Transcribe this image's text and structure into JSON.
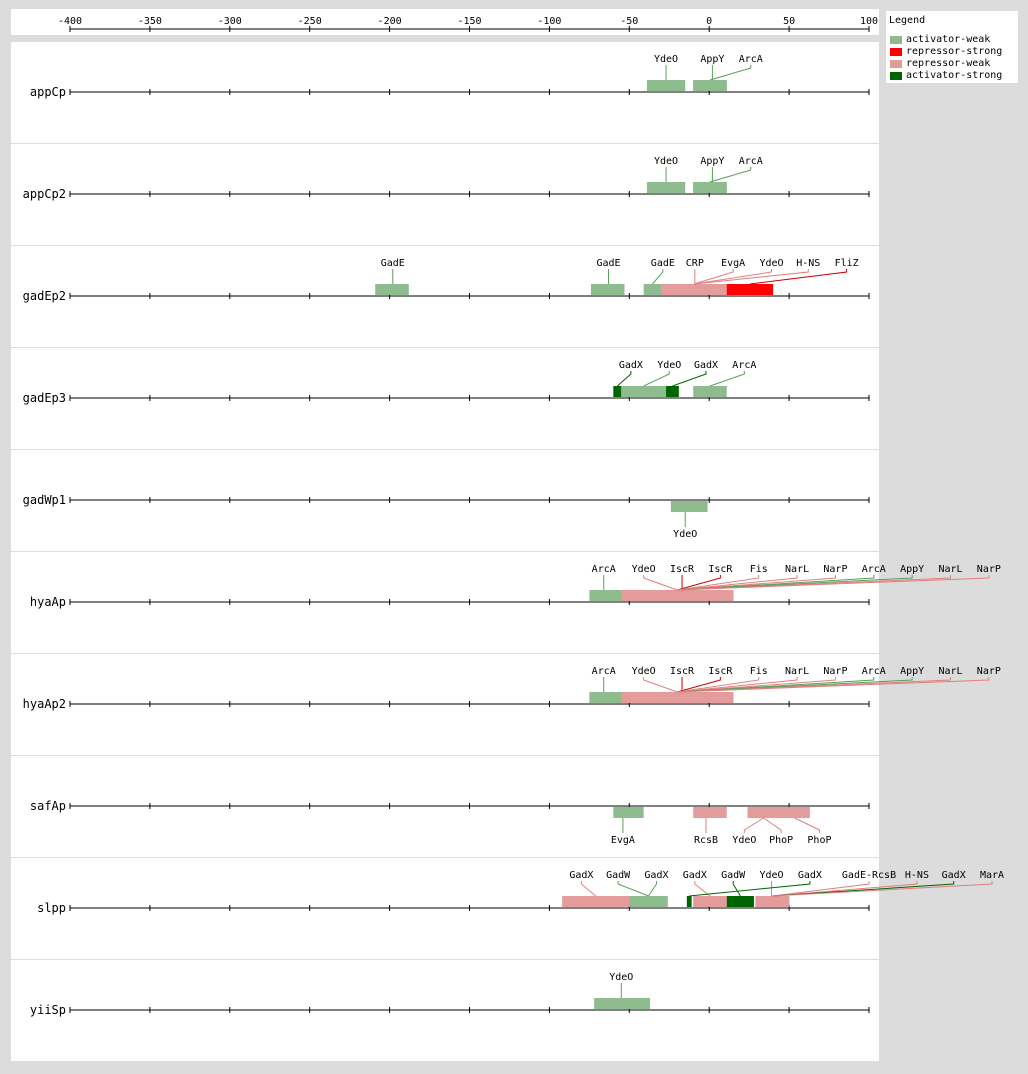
{
  "legend": {
    "title": "Legend",
    "items": [
      {
        "label": "activator-weak",
        "color": "#8fbc8f"
      },
      {
        "label": "repressor-strong",
        "color": "#ff0000"
      },
      {
        "label": "repressor-weak",
        "color": "#e39b9b"
      },
      {
        "label": "activator-strong",
        "color": "#006400"
      }
    ]
  },
  "axis": {
    "ticks": [
      -400,
      -350,
      -300,
      -250,
      -200,
      -150,
      -100,
      -50,
      0,
      50,
      100
    ],
    "tick_labels": [
      "-400",
      "-350",
      "-300",
      "-250",
      "-200",
      "-150",
      "-100",
      "-50",
      "0",
      "50",
      "100"
    ],
    "range": [
      -400,
      100
    ]
  },
  "promoters": [
    {
      "name": "appCp",
      "sites": [
        {
          "tf": "YdeO",
          "start": -39,
          "end": -15,
          "type": "activator-weak",
          "label_pos": "above",
          "label_at": -27
        },
        {
          "tf": "AppY",
          "start": -10,
          "end": 11,
          "type": "activator-weak",
          "label_pos": "above",
          "label_at": 2
        },
        {
          "tf": "ArcA",
          "start": -10,
          "end": 11,
          "type": "activator-weak",
          "label_pos": "above",
          "label_at": 26
        }
      ]
    },
    {
      "name": "appCp2",
      "sites": [
        {
          "tf": "YdeO",
          "start": -39,
          "end": -15,
          "type": "activator-weak",
          "label_pos": "above",
          "label_at": -27
        },
        {
          "tf": "AppY",
          "start": -10,
          "end": 11,
          "type": "activator-weak",
          "label_pos": "above",
          "label_at": 2
        },
        {
          "tf": "ArcA",
          "start": -10,
          "end": 11,
          "type": "activator-weak",
          "label_pos": "above",
          "label_at": 26
        }
      ]
    },
    {
      "name": "gadEp2",
      "sites": [
        {
          "tf": "GadE",
          "start": -209,
          "end": -188,
          "type": "activator-weak",
          "label_pos": "above",
          "label_at": -198
        },
        {
          "tf": "GadE",
          "start": -74,
          "end": -53,
          "type": "activator-weak",
          "label_pos": "above",
          "label_at": -63
        },
        {
          "tf": "GadE",
          "start": -41,
          "end": -30,
          "type": "activator-weak",
          "label_pos": "above",
          "label_at": -29
        },
        {
          "tf": "CRP",
          "start": -30,
          "end": 11,
          "type": "repressor-weak",
          "label_pos": "above",
          "label_at": -9
        },
        {
          "tf": "EvgA",
          "start": -30,
          "end": 11,
          "type": "repressor-weak",
          "label_pos": "above",
          "label_at": 15
        },
        {
          "tf": "YdeO",
          "start": -30,
          "end": 11,
          "type": "repressor-weak",
          "label_pos": "above",
          "label_at": 39
        },
        {
          "tf": "H-NS",
          "start": -30,
          "end": 11,
          "type": "repressor-weak",
          "label_pos": "above",
          "label_at": 62
        },
        {
          "tf": "FliZ",
          "start": 11,
          "end": 40,
          "type": "repressor-strong",
          "label_pos": "above",
          "label_at": 86
        }
      ]
    },
    {
      "name": "gadEp3",
      "sites": [
        {
          "tf": "GadX",
          "start": -60,
          "end": -55,
          "type": "activator-strong",
          "label_pos": "above",
          "label_at": -49
        },
        {
          "tf": "YdeO",
          "start": -55,
          "end": -27,
          "type": "activator-weak",
          "label_pos": "above",
          "label_at": -25
        },
        {
          "tf": "GadX",
          "start": -27,
          "end": -19,
          "type": "activator-strong",
          "label_pos": "above",
          "label_at": -2
        },
        {
          "tf": "ArcA",
          "start": -10,
          "end": 11,
          "type": "activator-weak",
          "label_pos": "above",
          "label_at": 22
        }
      ]
    },
    {
      "name": "gadWp1",
      "sites": [
        {
          "tf": "YdeO",
          "start": -24,
          "end": -1,
          "type": "activator-weak",
          "label_pos": "below",
          "label_at": -15
        }
      ]
    },
    {
      "name": "hyaAp",
      "sites": [
        {
          "tf": "ArcA",
          "start": -75,
          "end": -55,
          "type": "activator-weak",
          "label_pos": "above",
          "label_at": -66
        },
        {
          "tf": "YdeO",
          "start": -55,
          "end": 15,
          "type": "repressor-weak",
          "label_pos": "above",
          "label_at": -41
        },
        {
          "tf": "IscR",
          "start": -55,
          "end": 15,
          "type": "repressor-strong",
          "label_pos": "above",
          "label_at": -17
        },
        {
          "tf": "IscR",
          "start": -55,
          "end": 15,
          "type": "repressor-strong",
          "label_pos": "above",
          "label_at": 7
        },
        {
          "tf": "Fis",
          "start": -55,
          "end": 15,
          "type": "repressor-weak",
          "label_pos": "above",
          "label_at": 31
        },
        {
          "tf": "NarL",
          "start": -55,
          "end": 15,
          "type": "repressor-weak",
          "label_pos": "above",
          "label_at": 55
        },
        {
          "tf": "NarP",
          "start": -55,
          "end": 15,
          "type": "repressor-weak",
          "label_pos": "above",
          "label_at": 79
        },
        {
          "tf": "ArcA",
          "start": -55,
          "end": 15,
          "type": "activator-weak",
          "label_pos": "above",
          "label_at": 103
        },
        {
          "tf": "AppY",
          "start": -55,
          "end": 15,
          "type": "activator-weak",
          "label_pos": "above",
          "label_at": 127
        },
        {
          "tf": "NarL",
          "start": -55,
          "end": 15,
          "type": "repressor-weak",
          "label_pos": "above",
          "label_at": 151
        },
        {
          "tf": "NarP",
          "start": -55,
          "end": 15,
          "type": "repressor-weak",
          "label_pos": "above",
          "label_at": 175
        }
      ]
    },
    {
      "name": "hyaAp2",
      "sites": [
        {
          "tf": "ArcA",
          "start": -75,
          "end": -55,
          "type": "activator-weak",
          "label_pos": "above",
          "label_at": -66
        },
        {
          "tf": "YdeO",
          "start": -55,
          "end": 15,
          "type": "repressor-weak",
          "label_pos": "above",
          "label_at": -41
        },
        {
          "tf": "IscR",
          "start": -55,
          "end": 15,
          "type": "repressor-strong",
          "label_pos": "above",
          "label_at": -17
        },
        {
          "tf": "IscR",
          "start": -55,
          "end": 15,
          "type": "repressor-strong",
          "label_pos": "above",
          "label_at": 7
        },
        {
          "tf": "Fis",
          "start": -55,
          "end": 15,
          "type": "repressor-weak",
          "label_pos": "above",
          "label_at": 31
        },
        {
          "tf": "NarL",
          "start": -55,
          "end": 15,
          "type": "repressor-weak",
          "label_pos": "above",
          "label_at": 55
        },
        {
          "tf": "NarP",
          "start": -55,
          "end": 15,
          "type": "repressor-weak",
          "label_pos": "above",
          "label_at": 79
        },
        {
          "tf": "ArcA",
          "start": -55,
          "end": 15,
          "type": "activator-weak",
          "label_pos": "above",
          "label_at": 103
        },
        {
          "tf": "AppY",
          "start": -55,
          "end": 15,
          "type": "activator-weak",
          "label_pos": "above",
          "label_at": 127
        },
        {
          "tf": "NarL",
          "start": -55,
          "end": 15,
          "type": "repressor-weak",
          "label_pos": "above",
          "label_at": 151
        },
        {
          "tf": "NarP",
          "start": -55,
          "end": 15,
          "type": "repressor-weak",
          "label_pos": "above",
          "label_at": 175
        }
      ]
    },
    {
      "name": "safAp",
      "sites": [
        {
          "tf": "EvgA",
          "start": -60,
          "end": -41,
          "type": "activator-weak",
          "label_pos": "below",
          "label_at": -54
        },
        {
          "tf": "RcsB",
          "start": -10,
          "end": 11,
          "type": "repressor-weak",
          "label_pos": "below",
          "label_at": -2
        },
        {
          "tf": "YdeO",
          "start": 24,
          "end": 44,
          "type": "repressor-weak",
          "label_pos": "below",
          "label_at": 22
        },
        {
          "tf": "PhoP",
          "start": 24,
          "end": 44,
          "type": "repressor-weak",
          "label_pos": "below",
          "label_at": 45
        },
        {
          "tf": "PhoP",
          "start": 44,
          "end": 63,
          "type": "repressor-weak",
          "label_pos": "below",
          "label_at": 69
        }
      ]
    },
    {
      "name": "slpp",
      "sites": [
        {
          "tf": "GadX",
          "start": -92,
          "end": -50,
          "type": "repressor-weak",
          "label_pos": "above",
          "label_at": -80
        },
        {
          "tf": "GadW",
          "start": -50,
          "end": -26,
          "type": "activator-weak",
          "label_pos": "above",
          "label_at": -57
        },
        {
          "tf": "GadX",
          "start": -50,
          "end": -26,
          "type": "activator-weak",
          "label_pos": "above",
          "label_at": -33
        },
        {
          "tf": "GadX",
          "start": -10,
          "end": 11,
          "type": "repressor-weak",
          "label_pos": "above",
          "label_at": -9
        },
        {
          "tf": "GadW",
          "start": 11,
          "end": 28,
          "type": "activator-strong",
          "label_pos": "above",
          "label_at": 15
        },
        {
          "tf": "YdeO",
          "start": 29,
          "end": 50,
          "type": "repressor-weak",
          "label_pos": "above",
          "label_at": 39
        },
        {
          "tf": "GadX",
          "start": -14,
          "end": -11,
          "type": "activator-strong",
          "label_pos": "above",
          "label_at": 63
        },
        {
          "tf": "GadE-RcsB",
          "start": 29,
          "end": 50,
          "type": "repressor-weak",
          "label_pos": "above",
          "label_at": 100
        },
        {
          "tf": "H-NS",
          "start": 29,
          "end": 50,
          "type": "repressor-weak",
          "label_pos": "above",
          "label_at": 130
        },
        {
          "tf": "GadX",
          "start": 29,
          "end": 50,
          "type": "activator-strong",
          "label_pos": "above",
          "label_at": 153
        },
        {
          "tf": "MarA",
          "start": 29,
          "end": 50,
          "type": "repressor-weak",
          "label_pos": "above",
          "label_at": 177
        }
      ]
    },
    {
      "name": "yiiSp",
      "sites": [
        {
          "tf": "YdeO",
          "start": -72,
          "end": -37,
          "type": "activator-weak",
          "label_pos": "above",
          "label_at": -55
        }
      ]
    }
  ]
}
